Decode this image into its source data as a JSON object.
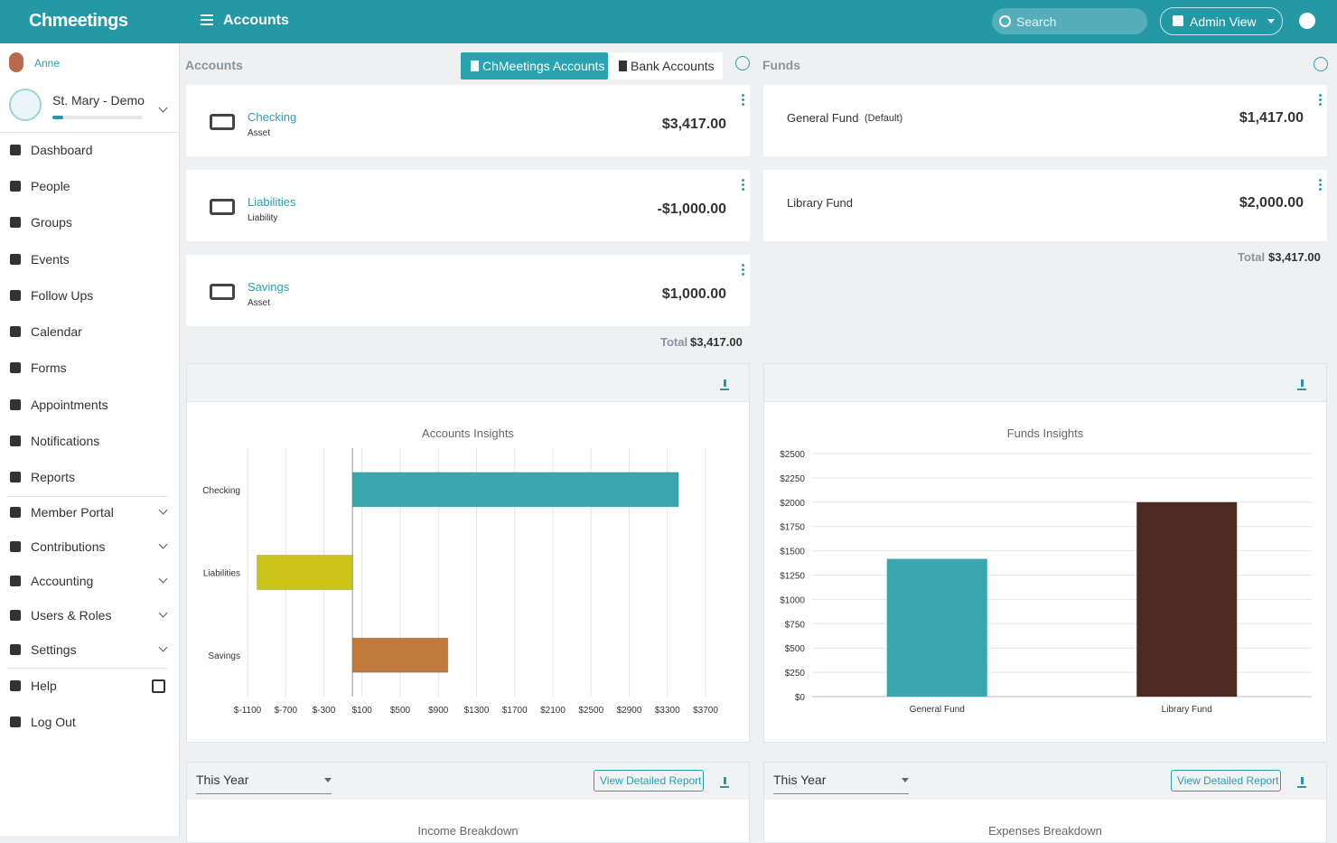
{
  "header": {
    "brand": "Chmeetings",
    "title": "Accounts",
    "search": "Search",
    "admin_view": "Admin View"
  },
  "sidebar": {
    "user": "Anne",
    "organization": "St. Mary - Demo",
    "menu": [
      {
        "label": "Dashboard"
      },
      {
        "label": "People"
      },
      {
        "label": "Groups"
      },
      {
        "label": "Events"
      },
      {
        "label": "Follow Ups"
      },
      {
        "label": "Calendar"
      },
      {
        "label": "Forms"
      },
      {
        "label": "Appointments"
      },
      {
        "label": "Notifications"
      },
      {
        "label": "Reports"
      },
      {
        "label": "Member Portal",
        "expandable": true
      },
      {
        "label": "Contributions",
        "expandable": true
      },
      {
        "label": "Accounting",
        "expandable": true
      },
      {
        "label": "Users & Roles",
        "expandable": true
      },
      {
        "label": "Settings",
        "expandable": true
      },
      {
        "label": "Help",
        "external": true
      },
      {
        "label": "Log Out"
      }
    ]
  },
  "accounts": {
    "heading": "Accounts",
    "tabs": [
      "ChMeetings Accounts",
      "Bank Accounts"
    ],
    "items": [
      {
        "name": "Checking",
        "type": "Asset",
        "balance": "$3,417.00"
      },
      {
        "name": "Liabilities",
        "type": "Liability",
        "balance": "-$1,000.00"
      },
      {
        "name": "Savings",
        "type": "Asset",
        "balance": "$1,000.00"
      }
    ],
    "total_label": "Total",
    "total": "$3,417.00"
  },
  "funds": {
    "heading": "Funds",
    "items": [
      {
        "name": "General Fund",
        "note": "(Default)",
        "balance": "$1,417.00"
      },
      {
        "name": "Library Fund",
        "balance": "$2,000.00"
      }
    ],
    "total_label": "Total",
    "total": "$3,417.00"
  },
  "chart_data": [
    {
      "type": "hbar",
      "title": "Accounts Insights",
      "categories": [
        "Checking",
        "Liabilities",
        "Savings"
      ],
      "values": [
        3417,
        -1000,
        1000
      ],
      "colors": [
        "#3aa6ae",
        "#c9c417",
        "#c27a3c"
      ],
      "xlim": [
        -1100,
        3700
      ],
      "xticks": [
        {
          "value": -1100,
          "label": "$-1100"
        },
        {
          "value": -700,
          "label": "$-700"
        },
        {
          "value": -300,
          "label": "$-300"
        },
        {
          "value": 100,
          "label": "$100"
        },
        {
          "value": 500,
          "label": "$500"
        },
        {
          "value": 900,
          "label": "$900"
        },
        {
          "value": 1300,
          "label": "$1300"
        },
        {
          "value": 1700,
          "label": "$1700"
        },
        {
          "value": 2100,
          "label": "$2100"
        },
        {
          "value": 2500,
          "label": "$2500"
        },
        {
          "value": 2900,
          "label": "$2900"
        },
        {
          "value": 3300,
          "label": "$3300"
        },
        {
          "value": 3700,
          "label": "$3700"
        }
      ],
      "grid": true
    },
    {
      "type": "bar",
      "title": "Funds Insights",
      "categories": [
        "General Fund",
        "Library Fund"
      ],
      "values": [
        1417,
        2000
      ],
      "colors": [
        "#3aa6ae",
        "#4b2a1f"
      ],
      "ylim": [
        0,
        2500
      ],
      "yticks": [
        {
          "value": 0,
          "label": "$0"
        },
        {
          "value": 250,
          "label": "$250"
        },
        {
          "value": 500,
          "label": "$500"
        },
        {
          "value": 750,
          "label": "$750"
        },
        {
          "value": 1000,
          "label": "$1000"
        },
        {
          "value": 1250,
          "label": "$1250"
        },
        {
          "value": 1500,
          "label": "$1500"
        },
        {
          "value": 1750,
          "label": "$1750"
        },
        {
          "value": 2000,
          "label": "$2000"
        },
        {
          "value": 2250,
          "label": "$2250"
        },
        {
          "value": 2500,
          "label": "$2500"
        }
      ],
      "grid": true
    }
  ],
  "reports": [
    {
      "period": "This Year",
      "button": "View Detailed Report",
      "title": "Income Breakdown"
    },
    {
      "period": "This Year",
      "button": "View Detailed Report",
      "title": "Expenses Breakdown"
    }
  ]
}
